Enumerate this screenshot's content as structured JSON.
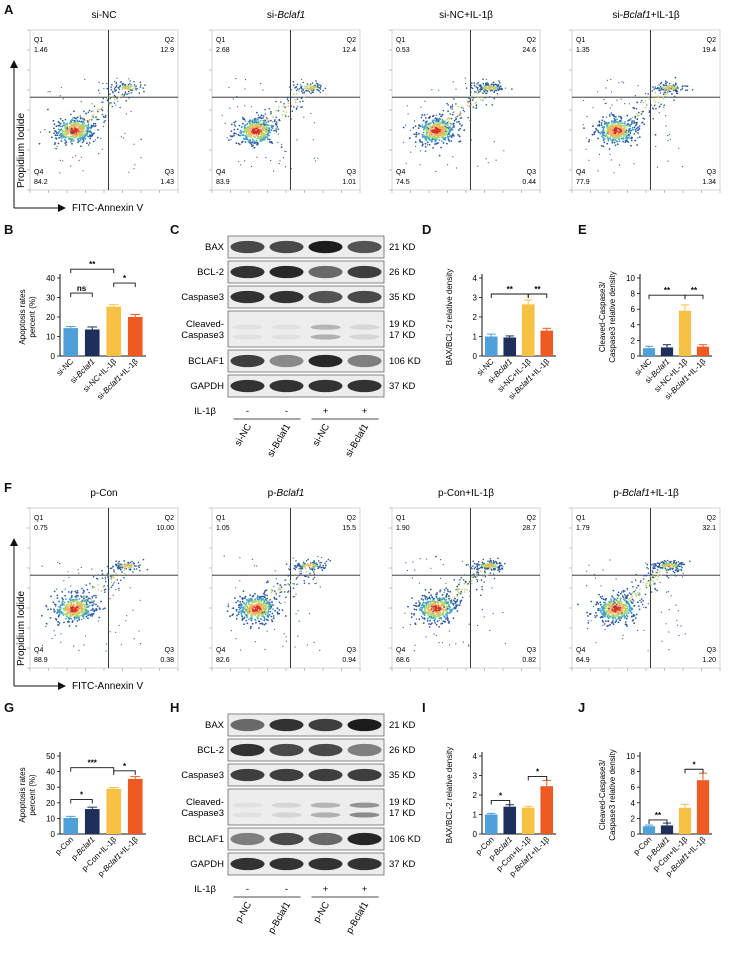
{
  "panel_letters": [
    "A",
    "B",
    "C",
    "D",
    "E",
    "F",
    "G",
    "H",
    "I",
    "J"
  ],
  "flow_axes": {
    "y_label": "Propidium Iodide",
    "x_label": "FITC-Annexin V"
  },
  "quadrant_labels": [
    "Q1",
    "Q2",
    "Q3",
    "Q4"
  ],
  "flow_A": [
    {
      "title_plain": "si-NC",
      "title_italic": "",
      "title_suffix": "",
      "q1": "1.46",
      "q2": "12.9",
      "q3": "1.43",
      "q4": "84.2"
    },
    {
      "title_plain": "si-",
      "title_italic": "Bclaf1",
      "title_suffix": "",
      "q1": "2.68",
      "q2": "12.4",
      "q3": "1.01",
      "q4": "83.9"
    },
    {
      "title_plain": "si-NC+IL-1β",
      "title_italic": "",
      "title_suffix": "",
      "q1": "0.53",
      "q2": "24.6",
      "q3": "0.44",
      "q4": "74.5"
    },
    {
      "title_plain": "si-",
      "title_italic": "Bclaf1",
      "title_suffix": "+IL-1β",
      "q1": "1.35",
      "q2": "19.4",
      "q3": "1.34",
      "q4": "77.9"
    }
  ],
  "flow_F": [
    {
      "title_plain": "p-Con",
      "title_italic": "",
      "title_suffix": "",
      "q1": "0.75",
      "q2": "10.00",
      "q3": "0.38",
      "q4": "88.9"
    },
    {
      "title_plain": "p-",
      "title_italic": "Bclaf1",
      "title_suffix": "",
      "q1": "1.05",
      "q2": "15.5",
      "q3": "0.94",
      "q4": "82.6"
    },
    {
      "title_plain": "p-Con+IL-1β",
      "title_italic": "",
      "title_suffix": "",
      "q1": "1.90",
      "q2": "28.7",
      "q3": "0.82",
      "q4": "68.6"
    },
    {
      "title_plain": "p-",
      "title_italic": "Bclaf1",
      "title_suffix": "+IL-1β",
      "q1": "1.79",
      "q2": "32.1",
      "q3": "1.20",
      "q4": "64.9"
    }
  ],
  "western_C": {
    "rows": [
      {
        "label": "BAX",
        "mw": "21 KD"
      },
      {
        "label": "BCL-2",
        "mw": "26 KD"
      },
      {
        "label": "Caspase3",
        "mw": "35 KD"
      },
      {
        "label": "Cleaved-\nCaspase3",
        "mw": "19 KD\n17 KD"
      },
      {
        "label": "BCLAF1",
        "mw": "106 KD"
      },
      {
        "label": "GAPDH",
        "mw": "37 KD"
      }
    ],
    "il_label": "IL-1β",
    "il_signs": [
      "-",
      "-",
      "+",
      "+"
    ],
    "lanes": [
      "si-NC",
      "si-Bclaf1",
      "si-NC",
      "si-Bclaf1"
    ]
  },
  "western_H": {
    "rows": [
      {
        "label": "BAX",
        "mw": "21 KD"
      },
      {
        "label": "BCL-2",
        "mw": "26 KD"
      },
      {
        "label": "Caspase3",
        "mw": "35 KD"
      },
      {
        "label": "Cleaved-\nCaspase3",
        "mw": "19 KD\n17 KD"
      },
      {
        "label": "BCLAF1",
        "mw": "106 KD"
      },
      {
        "label": "GAPDH",
        "mw": "37 KD"
      }
    ],
    "il_label": "IL-1β",
    "il_signs": [
      "-",
      "-",
      "+",
      "+"
    ],
    "lanes": [
      "p-NC",
      "p-Bclaf1",
      "p-NC",
      "p-Bclaf1"
    ]
  },
  "colors": {
    "blue": "#4f9fd8",
    "navy": "#1f2f5c",
    "yellow": "#f7c244",
    "orange": "#ee5a22"
  },
  "chart_data": [
    {
      "id": "B",
      "type": "bar",
      "ylabel": "Apoptosis rates\npercent (%)",
      "ylim": [
        0,
        40
      ],
      "yticks": [
        0,
        10,
        20,
        30,
        40
      ],
      "categories": [
        "si-NC",
        "si-Bclaf1",
        "si-NC+IL-1β",
        "si-Bclaf1+IL-1β"
      ],
      "values": [
        14.3,
        13.6,
        25.3,
        20.0
      ],
      "errors": [
        0.8,
        1.3,
        1.0,
        1.3
      ],
      "sig": [
        {
          "from": 0,
          "to": 1,
          "label": "ns",
          "y": 32.3
        },
        {
          "from": 0,
          "to": 2,
          "label": "**",
          "y": 44.5
        },
        {
          "from": 2,
          "to": 3,
          "label": "*",
          "y": 37.4
        }
      ]
    },
    {
      "id": "D",
      "type": "bar",
      "ylabel": "BAX/BCL-2 relative density",
      "ylim": [
        0,
        4
      ],
      "yticks": [
        0,
        1,
        2,
        3,
        4
      ],
      "categories": [
        "si-NC",
        "si-Bclaf1",
        "si-NC+IL-1β",
        "si-Bclaf1+IL-1β"
      ],
      "values": [
        1.0,
        0.95,
        2.65,
        1.3
      ],
      "errors": [
        0.12,
        0.08,
        0.22,
        0.12
      ],
      "sig": [
        {
          "from": 0,
          "to": 2,
          "label": "**",
          "y": 3.18
        },
        {
          "from": 2,
          "to": 3,
          "label": "**",
          "y": 3.18
        }
      ]
    },
    {
      "id": "E",
      "type": "bar",
      "ylabel": "Cleaved-Caspase3/\nCaspase3 relative density",
      "ylim": [
        0,
        10
      ],
      "yticks": [
        0,
        2,
        4,
        6,
        8,
        10
      ],
      "categories": [
        "si-NC",
        "si-Bclaf1",
        "si-NC+IL-1β",
        "si-Bclaf1+IL-1β"
      ],
      "values": [
        1.0,
        1.1,
        5.8,
        1.2
      ],
      "errors": [
        0.25,
        0.35,
        0.75,
        0.25
      ],
      "sig": [
        {
          "from": 0,
          "to": 2,
          "label": "**",
          "y": 7.8
        },
        {
          "from": 2,
          "to": 3,
          "label": "**",
          "y": 7.8
        }
      ]
    },
    {
      "id": "G",
      "type": "bar",
      "ylabel": "Apoptosis rates\npercent (%)",
      "ylim": [
        0,
        50
      ],
      "yticks": [
        0,
        10,
        20,
        30,
        40,
        50
      ],
      "categories": [
        "p-Con",
        "p-Bclaf1",
        "p-Con+IL-1β",
        "p-Bclaf1+IL-1β"
      ],
      "values": [
        10.3,
        16.0,
        29.0,
        35.3
      ],
      "errors": [
        1.0,
        1.2,
        0.8,
        1.5
      ],
      "sig": [
        {
          "from": 0,
          "to": 1,
          "label": "*",
          "y": 22.1
        },
        {
          "from": 0,
          "to": 2,
          "label": "***",
          "y": 42.5
        },
        {
          "from": 2,
          "to": 3,
          "label": "*",
          "y": 40.5
        }
      ]
    },
    {
      "id": "I",
      "type": "bar",
      "ylabel": "BAX/BCL-2 relative density",
      "ylim": [
        0,
        4
      ],
      "yticks": [
        0,
        1,
        2,
        3,
        4
      ],
      "categories": [
        "p-Con",
        "p-Bclaf1",
        "p-Con+IL-1β",
        "p-Bclaf1+IL-1β"
      ],
      "values": [
        1.0,
        1.4,
        1.35,
        2.45
      ],
      "errors": [
        0.06,
        0.1,
        0.07,
        0.3
      ],
      "sig": [
        {
          "from": 0,
          "to": 1,
          "label": "*",
          "y": 1.72
        },
        {
          "from": 2,
          "to": 3,
          "label": "*",
          "y": 2.95
        }
      ]
    },
    {
      "id": "J",
      "type": "bar",
      "ylabel": "Cleaved-Caspase3/\nCaspase3 relative density",
      "ylim": [
        0,
        10
      ],
      "yticks": [
        0,
        2,
        4,
        6,
        8,
        10
      ],
      "categories": [
        "p-Con",
        "p-Bclaf1",
        "p-Con+IL-1β",
        "p-Bclaf1+IL-1β"
      ],
      "values": [
        1.0,
        1.1,
        3.35,
        6.9
      ],
      "errors": [
        0.15,
        0.3,
        0.45,
        0.9
      ],
      "sig": [
        {
          "from": 0,
          "to": 1,
          "label": "**",
          "y": 1.8
        },
        {
          "from": 2,
          "to": 3,
          "label": "*",
          "y": 8.3
        }
      ]
    }
  ]
}
